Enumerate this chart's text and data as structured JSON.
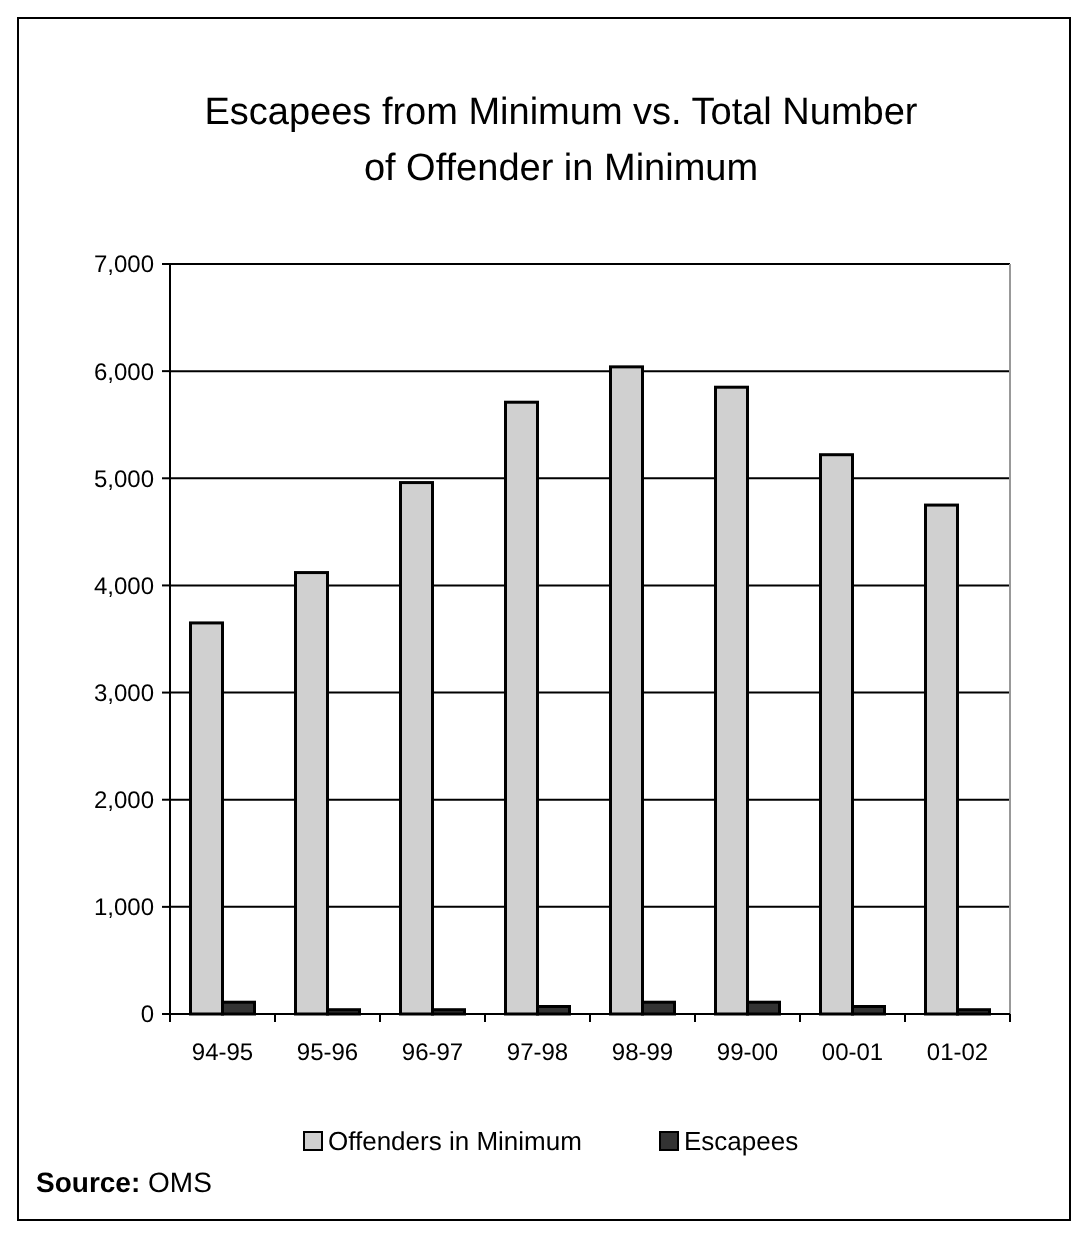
{
  "chart_data": {
    "type": "bar",
    "title": "Escapees from Minimum vs. Total Number\nof Offender in Minimum",
    "categories": [
      "94-95",
      "95-96",
      "96-97",
      "97-98",
      "98-99",
      "99-00",
      "00-01",
      "01-02"
    ],
    "series": [
      {
        "name": "Offenders in Minimum",
        "color": "#d0d0d0",
        "values": [
          3650,
          4120,
          4960,
          5710,
          6040,
          5850,
          5220,
          4750
        ]
      },
      {
        "name": "Escapees",
        "color": "#333333",
        "values": [
          110,
          40,
          40,
          70,
          110,
          110,
          70,
          40
        ]
      }
    ],
    "ylim": [
      0,
      7000
    ],
    "yticks": [
      {
        "value": 0,
        "label": "0"
      },
      {
        "value": 1000,
        "label": "1,000"
      },
      {
        "value": 2000,
        "label": "2,000"
      },
      {
        "value": 3000,
        "label": "3,000"
      },
      {
        "value": 4000,
        "label": "4,000"
      },
      {
        "value": 5000,
        "label": "5,000"
      },
      {
        "value": 6000,
        "label": "6,000"
      },
      {
        "value": 7000,
        "label": "7,000"
      }
    ],
    "grid": "y",
    "legend": "bottom",
    "annotations": [
      "Source: OMS"
    ]
  }
}
